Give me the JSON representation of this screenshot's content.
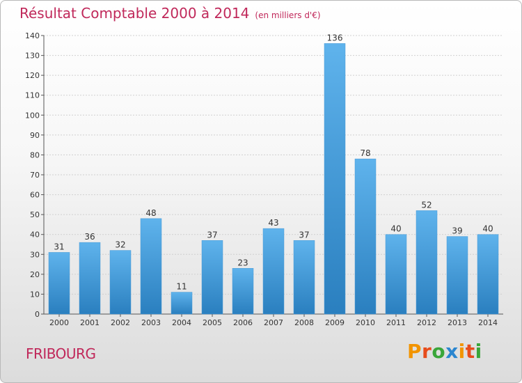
{
  "header": {
    "title": "Résultat Comptable 2000 à 2014",
    "unit": "(en milliers d'€)"
  },
  "footer": {
    "town": "FRIBOURG",
    "logo": [
      "P",
      "r",
      "o",
      "x",
      "i",
      "t",
      "i"
    ]
  },
  "colors": {
    "title": "#c0285a",
    "bar_top": "#5fb3ec",
    "bar_bottom": "#2a7fbf",
    "logo": [
      "#f29400",
      "#e74c1c",
      "#3aa63a",
      "#2b86cf",
      "#f29400",
      "#e74c1c",
      "#3aa63a"
    ]
  },
  "chart_data": {
    "type": "bar",
    "title": "Résultat Comptable 2000 à 2014",
    "ylabel": "en milliers d'€",
    "xlabel": "",
    "categories": [
      "2000",
      "2001",
      "2002",
      "2003",
      "2004",
      "2005",
      "2006",
      "2007",
      "2008",
      "2009",
      "2010",
      "2011",
      "2012",
      "2013",
      "2014"
    ],
    "values": [
      31,
      36,
      32,
      48,
      11,
      37,
      23,
      43,
      37,
      136,
      78,
      40,
      52,
      39,
      40
    ],
    "ylim": [
      0,
      140
    ],
    "yticks": [
      0,
      10,
      20,
      30,
      40,
      50,
      60,
      70,
      80,
      90,
      100,
      110,
      120,
      130,
      140
    ],
    "grid": true
  }
}
